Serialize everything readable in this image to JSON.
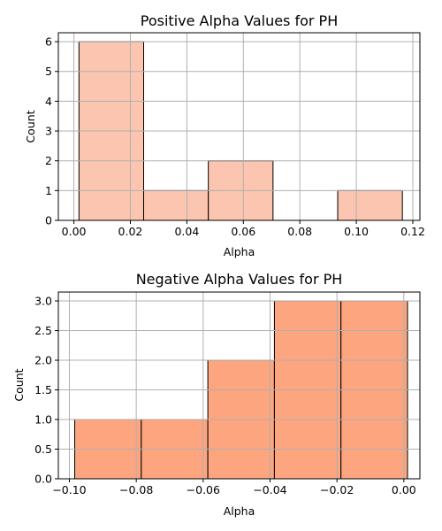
{
  "chart_data": [
    {
      "type": "bar",
      "title": "Positive Alpha Values for PH",
      "xlabel": "Alpha",
      "ylabel": "Count",
      "bar_color": "#fcc5b0",
      "grid": true,
      "xlim": [
        -0.0055,
        0.1225
      ],
      "ylim": [
        0,
        6.3
      ],
      "xticks": [
        0.0,
        0.02,
        0.04,
        0.06,
        0.08,
        0.1,
        0.12
      ],
      "xtick_labels": [
        "0.00",
        "0.02",
        "0.04",
        "0.06",
        "0.08",
        "0.10",
        "0.12"
      ],
      "yticks": [
        0,
        1,
        2,
        3,
        4,
        5,
        6
      ],
      "ytick_labels": [
        "0",
        "1",
        "2",
        "3",
        "4",
        "5",
        "6"
      ],
      "bins": [
        {
          "x0": 0.0018,
          "x1": 0.0247,
          "count": 6
        },
        {
          "x0": 0.0247,
          "x1": 0.0476,
          "count": 1
        },
        {
          "x0": 0.0476,
          "x1": 0.0705,
          "count": 2
        },
        {
          "x0": 0.0705,
          "x1": 0.0934,
          "count": 0
        },
        {
          "x0": 0.0934,
          "x1": 0.1163,
          "count": 1
        }
      ]
    },
    {
      "type": "bar",
      "title": "Negative Alpha Values for PH",
      "xlabel": "Alpha",
      "ylabel": "Count",
      "bar_color": "#fca57f",
      "grid": true,
      "xlim": [
        -0.1033,
        0.0048
      ],
      "ylim": [
        0,
        3.15
      ],
      "xticks": [
        -0.1,
        -0.08,
        -0.06,
        -0.04,
        -0.02,
        0.0
      ],
      "xtick_labels": [
        "−0.10",
        "−0.08",
        "−0.06",
        "−0.04",
        "−0.02",
        "0.00"
      ],
      "yticks": [
        0,
        0.5,
        1.0,
        1.5,
        2.0,
        2.5,
        3.0
      ],
      "ytick_labels": [
        "0.0",
        "0.5",
        "1.0",
        "1.5",
        "2.0",
        "2.5",
        "3.0"
      ],
      "bins": [
        {
          "x0": -0.0984,
          "x1": -0.0785,
          "count": 1
        },
        {
          "x0": -0.0785,
          "x1": -0.0586,
          "count": 1
        },
        {
          "x0": -0.0586,
          "x1": -0.0387,
          "count": 2
        },
        {
          "x0": -0.0387,
          "x1": -0.0188,
          "count": 3
        },
        {
          "x0": -0.0188,
          "x1": 0.0011,
          "count": 3
        }
      ]
    }
  ]
}
